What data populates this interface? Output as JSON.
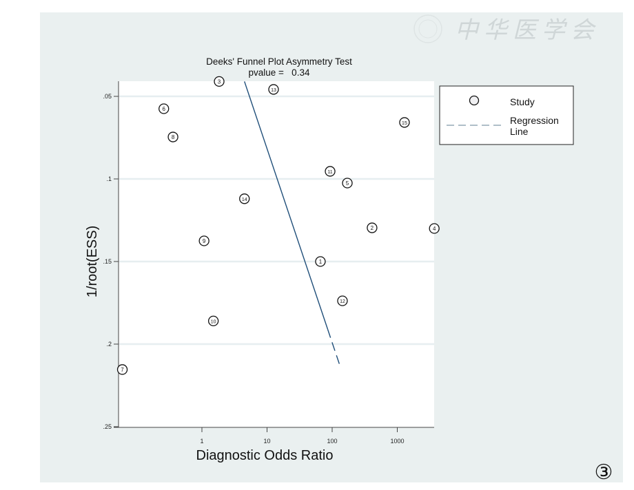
{
  "watermark": "中华医学会",
  "figure_label": "③",
  "chart_data": {
    "type": "scatter",
    "title": "Deeks' Funnel Plot Asymmetry Test",
    "subtitle": "pvalue =   0.34",
    "xlabel": "Diagnostic Odds Ratio",
    "ylabel": "1/root(ESS)",
    "xscale": "log",
    "xlim": [
      0.052,
      3700
    ],
    "ylim": [
      0.041,
      0.25
    ],
    "yreversed": true,
    "xticks": [
      {
        "v": 1,
        "label": "1"
      },
      {
        "v": 10,
        "label": "10"
      },
      {
        "v": 100,
        "label": "100"
      },
      {
        "v": 1000,
        "label": "1000"
      }
    ],
    "yticks": [
      {
        "v": 0.05,
        "label": ".05"
      },
      {
        "v": 0.1,
        "label": ".1"
      },
      {
        "v": 0.15,
        "label": ".15"
      },
      {
        "v": 0.2,
        "label": ".2"
      },
      {
        "v": 0.25,
        "label": ".25"
      }
    ],
    "grid": true,
    "legend": {
      "placement": "right",
      "entries": [
        {
          "label": "Study",
          "marker": "circle"
        },
        {
          "label": "Regression",
          "label2": "Line",
          "marker": "dashed-line"
        }
      ]
    },
    "series": [
      {
        "name": "Study",
        "points": [
          {
            "id": "1",
            "x": 66,
            "y": 0.15
          },
          {
            "id": "2",
            "x": 410,
            "y": 0.1296
          },
          {
            "id": "3",
            "x": 1.84,
            "y": 0.041
          },
          {
            "id": "4",
            "x": 3700,
            "y": 0.13
          },
          {
            "id": "5",
            "x": 171,
            "y": 0.1025
          },
          {
            "id": "6",
            "x": 0.26,
            "y": 0.0575
          },
          {
            "id": "7",
            "x": 0.06,
            "y": 0.2154
          },
          {
            "id": "8",
            "x": 0.36,
            "y": 0.0746
          },
          {
            "id": "9",
            "x": 1.08,
            "y": 0.1375
          },
          {
            "id": "10",
            "x": 1.5,
            "y": 0.186
          },
          {
            "id": "11",
            "x": 93,
            "y": 0.0954
          },
          {
            "id": "12",
            "x": 144,
            "y": 0.1738
          },
          {
            "id": "13",
            "x": 12.6,
            "y": 0.0458
          },
          {
            "id": "14",
            "x": 4.5,
            "y": 0.112
          },
          {
            "id": "15",
            "x": 1290,
            "y": 0.0658
          }
        ]
      },
      {
        "name": "Regression Line",
        "line": {
          "x0": 4.5,
          "y0": 0.041,
          "x1": 134,
          "y1": 0.214,
          "solid_until_y": 0.191
        },
        "color": "#1f4e79"
      }
    ]
  },
  "colors": {
    "panel": "#eaf0f0",
    "grid": "#e6eef0",
    "line": "#1f4e79",
    "legend_line": "#7d98a8"
  }
}
